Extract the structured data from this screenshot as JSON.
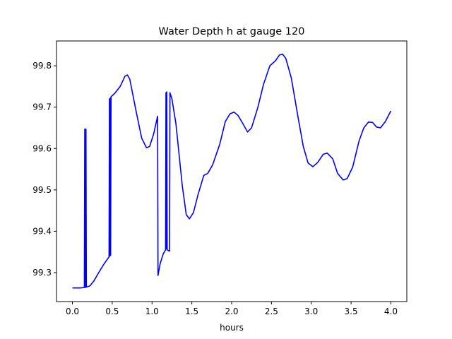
{
  "chart_data": {
    "type": "line",
    "title": "Water Depth h at gauge 120",
    "xlabel": "hours",
    "ylabel": "",
    "xlim": [
      -0.2,
      4.2
    ],
    "ylim": [
      99.23,
      99.86
    ],
    "xticks": [
      0.0,
      0.5,
      1.0,
      1.5,
      2.0,
      2.5,
      3.0,
      3.5,
      4.0
    ],
    "xtick_labels": [
      "0.0",
      "0.5",
      "1.0",
      "1.5",
      "2.0",
      "2.5",
      "3.0",
      "3.5",
      "4.0"
    ],
    "yticks": [
      99.3,
      99.4,
      99.5,
      99.6,
      99.7,
      99.8
    ],
    "ytick_labels": [
      "99.3",
      "99.4",
      "99.5",
      "99.6",
      "99.7",
      "99.8"
    ],
    "grid": false,
    "series": [
      {
        "name": "",
        "color": "#0000ff",
        "points": [
          [
            0.0,
            99.263
          ],
          [
            0.1,
            99.263
          ],
          [
            0.15,
            99.264
          ],
          [
            0.155,
            99.647
          ],
          [
            0.165,
            99.264
          ],
          [
            0.17,
            99.647
          ],
          [
            0.175,
            99.265
          ],
          [
            0.22,
            99.268
          ],
          [
            0.27,
            99.28
          ],
          [
            0.33,
            99.3
          ],
          [
            0.4,
            99.322
          ],
          [
            0.46,
            99.338
          ],
          [
            0.465,
            99.72
          ],
          [
            0.47,
            99.34
          ],
          [
            0.475,
            99.722
          ],
          [
            0.48,
            99.342
          ],
          [
            0.485,
            99.725
          ],
          [
            0.53,
            99.733
          ],
          [
            0.6,
            99.75
          ],
          [
            0.66,
            99.775
          ],
          [
            0.69,
            99.778
          ],
          [
            0.72,
            99.768
          ],
          [
            0.8,
            99.69
          ],
          [
            0.87,
            99.625
          ],
          [
            0.93,
            99.602
          ],
          [
            0.97,
            99.605
          ],
          [
            1.02,
            99.635
          ],
          [
            1.07,
            99.678
          ],
          [
            1.075,
            99.293
          ],
          [
            1.1,
            99.32
          ],
          [
            1.14,
            99.345
          ],
          [
            1.17,
            99.355
          ],
          [
            1.175,
            99.735
          ],
          [
            1.18,
            99.358
          ],
          [
            1.185,
            99.737
          ],
          [
            1.19,
            99.355
          ],
          [
            1.22,
            99.352
          ],
          [
            1.225,
            99.735
          ],
          [
            1.25,
            99.72
          ],
          [
            1.3,
            99.66
          ],
          [
            1.38,
            99.51
          ],
          [
            1.43,
            99.44
          ],
          [
            1.47,
            99.43
          ],
          [
            1.52,
            99.445
          ],
          [
            1.58,
            99.49
          ],
          [
            1.65,
            99.535
          ],
          [
            1.7,
            99.54
          ],
          [
            1.76,
            99.56
          ],
          [
            1.85,
            99.61
          ],
          [
            1.92,
            99.665
          ],
          [
            1.98,
            99.684
          ],
          [
            2.03,
            99.688
          ],
          [
            2.08,
            99.68
          ],
          [
            2.15,
            99.657
          ],
          [
            2.2,
            99.64
          ],
          [
            2.25,
            99.65
          ],
          [
            2.33,
            99.7
          ],
          [
            2.4,
            99.755
          ],
          [
            2.48,
            99.8
          ],
          [
            2.55,
            99.812
          ],
          [
            2.6,
            99.826
          ],
          [
            2.64,
            99.828
          ],
          [
            2.68,
            99.818
          ],
          [
            2.75,
            99.77
          ],
          [
            2.83,
            99.68
          ],
          [
            2.9,
            99.605
          ],
          [
            2.96,
            99.565
          ],
          [
            3.02,
            99.556
          ],
          [
            3.08,
            99.566
          ],
          [
            3.15,
            99.586
          ],
          [
            3.2,
            99.589
          ],
          [
            3.27,
            99.575
          ],
          [
            3.33,
            99.54
          ],
          [
            3.4,
            99.524
          ],
          [
            3.45,
            99.527
          ],
          [
            3.52,
            99.555
          ],
          [
            3.6,
            99.618
          ],
          [
            3.66,
            99.65
          ],
          [
            3.72,
            99.664
          ],
          [
            3.77,
            99.663
          ],
          [
            3.82,
            99.652
          ],
          [
            3.87,
            99.65
          ],
          [
            3.93,
            99.665
          ],
          [
            4.0,
            99.691
          ]
        ]
      }
    ]
  }
}
